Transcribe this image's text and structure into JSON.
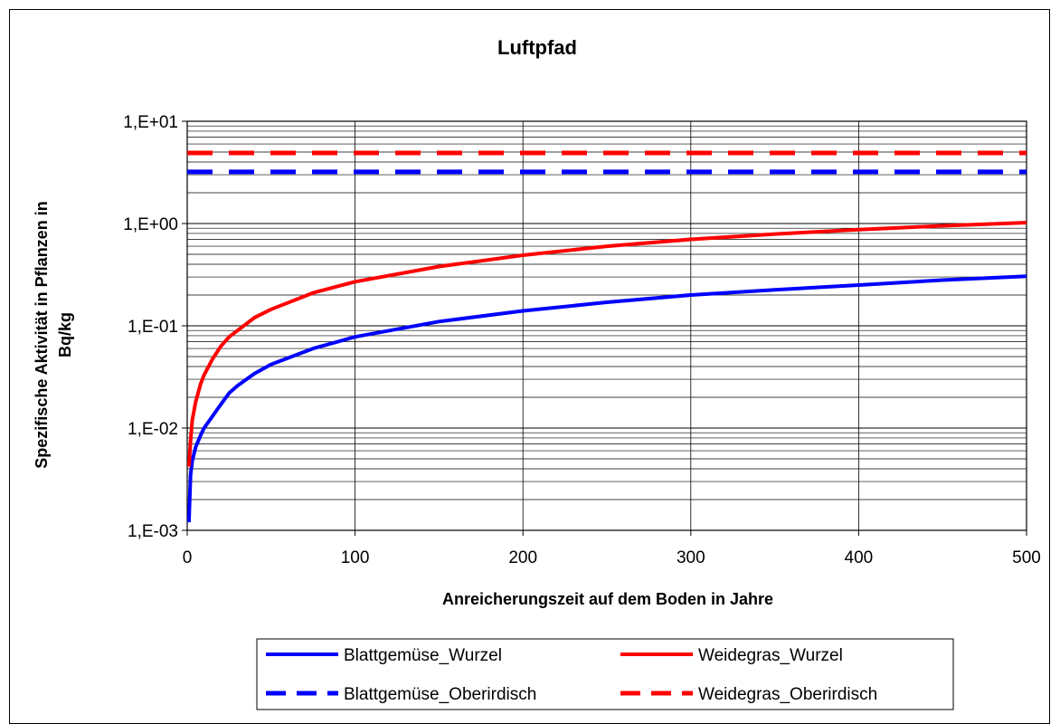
{
  "chart_data": {
    "type": "line",
    "title": "Luftpfad",
    "xlabel": "Anreicherungszeit auf dem Boden in Jahre",
    "ylabel": [
      "Spezifische Aktivität in Pflanzen in",
      "Bq/kg"
    ],
    "xlim": [
      0,
      500
    ],
    "ylim": [
      0.001,
      10
    ],
    "yscale": "log",
    "grid": true,
    "x_ticks": [
      "0",
      "100",
      "200",
      "300",
      "400",
      "500"
    ],
    "y_ticks": [
      "1,E-03",
      "1,E-02",
      "1,E-01",
      "1,E+00",
      "1,E+01"
    ],
    "legend_position": "bottom",
    "series": [
      {
        "name": "Blattgemüse_Wurzel",
        "color": "#0000ff",
        "style": "solid",
        "x": [
          1,
          2,
          3,
          5,
          8,
          10,
          15,
          20,
          25,
          30,
          40,
          50,
          75,
          100,
          150,
          200,
          250,
          300,
          350,
          400,
          450,
          500
        ],
        "y": [
          0.0012,
          0.0035,
          0.0048,
          0.0065,
          0.0085,
          0.01,
          0.013,
          0.017,
          0.022,
          0.026,
          0.034,
          0.042,
          0.06,
          0.078,
          0.11,
          0.14,
          0.17,
          0.2,
          0.225,
          0.25,
          0.28,
          0.305
        ]
      },
      {
        "name": "Weidegras_Wurzel",
        "color": "#ff0000",
        "style": "solid",
        "x": [
          1,
          2,
          3,
          5,
          8,
          10,
          15,
          20,
          25,
          30,
          40,
          50,
          75,
          100,
          150,
          200,
          250,
          300,
          350,
          400,
          450,
          500
        ],
        "y": [
          0.0042,
          0.0075,
          0.012,
          0.018,
          0.027,
          0.033,
          0.047,
          0.063,
          0.078,
          0.09,
          0.12,
          0.145,
          0.21,
          0.27,
          0.38,
          0.49,
          0.6,
          0.7,
          0.79,
          0.87,
          0.95,
          1.02
        ]
      },
      {
        "name": "Blattgemüse_Oberirdisch",
        "color": "#0000ff",
        "style": "dashed",
        "x": [
          0,
          500
        ],
        "y": [
          3.2,
          3.2
        ]
      },
      {
        "name": "Weidegras_Oberirdisch",
        "color": "#ff0000",
        "style": "dashed",
        "x": [
          0,
          500
        ],
        "y": [
          4.9,
          4.9
        ]
      }
    ]
  }
}
